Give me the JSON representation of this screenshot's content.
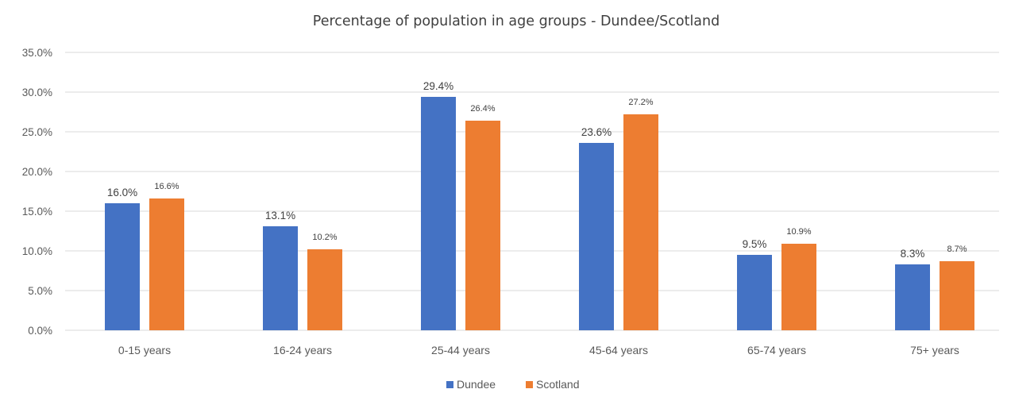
{
  "chart_data": {
    "type": "bar",
    "title": "Percentage of population in age groups - Dundee/Scotland",
    "categories": [
      "0-15 years",
      "16-24 years",
      "25-44 years",
      "45-64 years",
      "65-74 years",
      "75+ years"
    ],
    "series": [
      {
        "name": "Dundee",
        "color": "#4472c4",
        "values": [
          16.0,
          13.1,
          29.4,
          23.6,
          9.5,
          8.3
        ],
        "labels": [
          "16.0%",
          "13.1%",
          "29.4%",
          "23.6%",
          "9.5%",
          "8.3%"
        ]
      },
      {
        "name": "Scotland",
        "color": "#ed7d31",
        "values": [
          16.6,
          10.2,
          26.4,
          27.2,
          10.9,
          8.7
        ],
        "labels": [
          "16.6%",
          "10.2%",
          "26.4%",
          "27.2%",
          "10.9%",
          "8.7%"
        ]
      }
    ],
    "ylim": [
      0,
      35
    ],
    "yticks": [
      "0.0%",
      "5.0%",
      "10.0%",
      "15.0%",
      "20.0%",
      "25.0%",
      "30.0%",
      "35.0%"
    ],
    "grid": true,
    "legend": "bottom"
  }
}
